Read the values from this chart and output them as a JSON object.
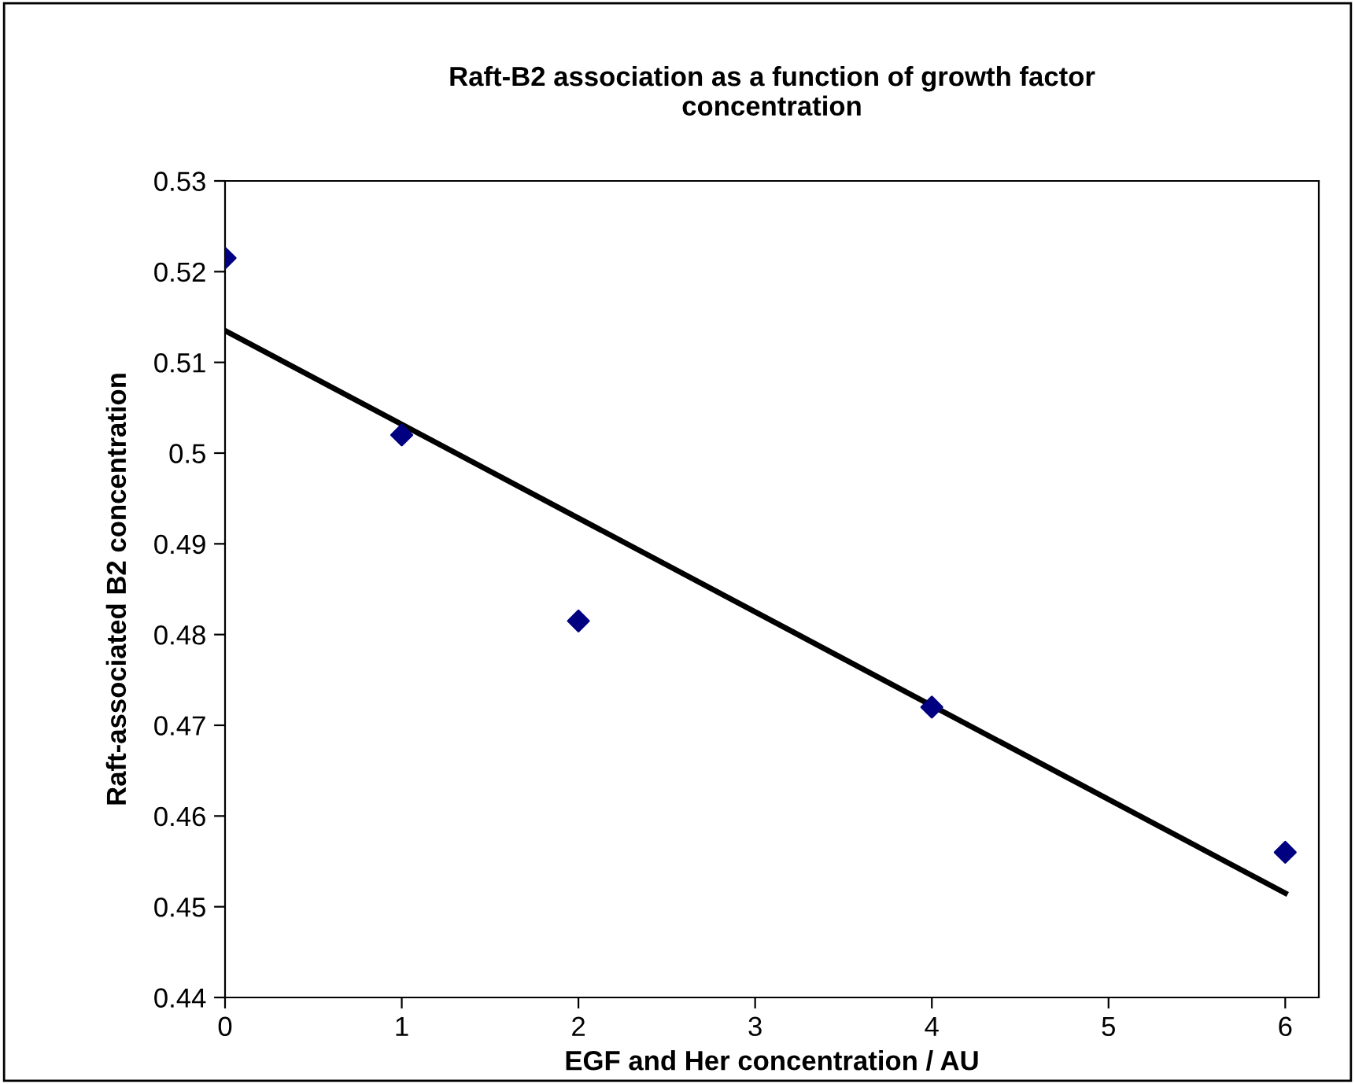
{
  "chart_data": {
    "type": "scatter",
    "title": "Raft-B2 association as a function of growth factor\nconcentration",
    "xlabel": "EGF and Her concentration / AU",
    "ylabel": "Raft-associated B2 concentration",
    "series": [
      {
        "color": "#000080",
        "marker": "diamond",
        "x": [
          0,
          1,
          2,
          4,
          6
        ],
        "values": [
          0.5215,
          0.502,
          0.4815,
          0.472,
          0.456
        ]
      },
      {
        "type": "line",
        "color": "#000000",
        "marker": "none",
        "line_style": "solid",
        "x": [
          0,
          6
        ],
        "values": [
          0.5135,
          0.4515
        ]
      }
    ],
    "xlim": [
      0,
      6.19
    ],
    "xticks": [
      0,
      1,
      2,
      3,
      4,
      5,
      6
    ],
    "ylim": [
      0.44,
      0.53
    ],
    "yticks": [
      0.44,
      0.45,
      0.46,
      0.47,
      0.48,
      0.49,
      0.5,
      0.51,
      0.52,
      0.53
    ],
    "grid": false,
    "legend": false
  }
}
